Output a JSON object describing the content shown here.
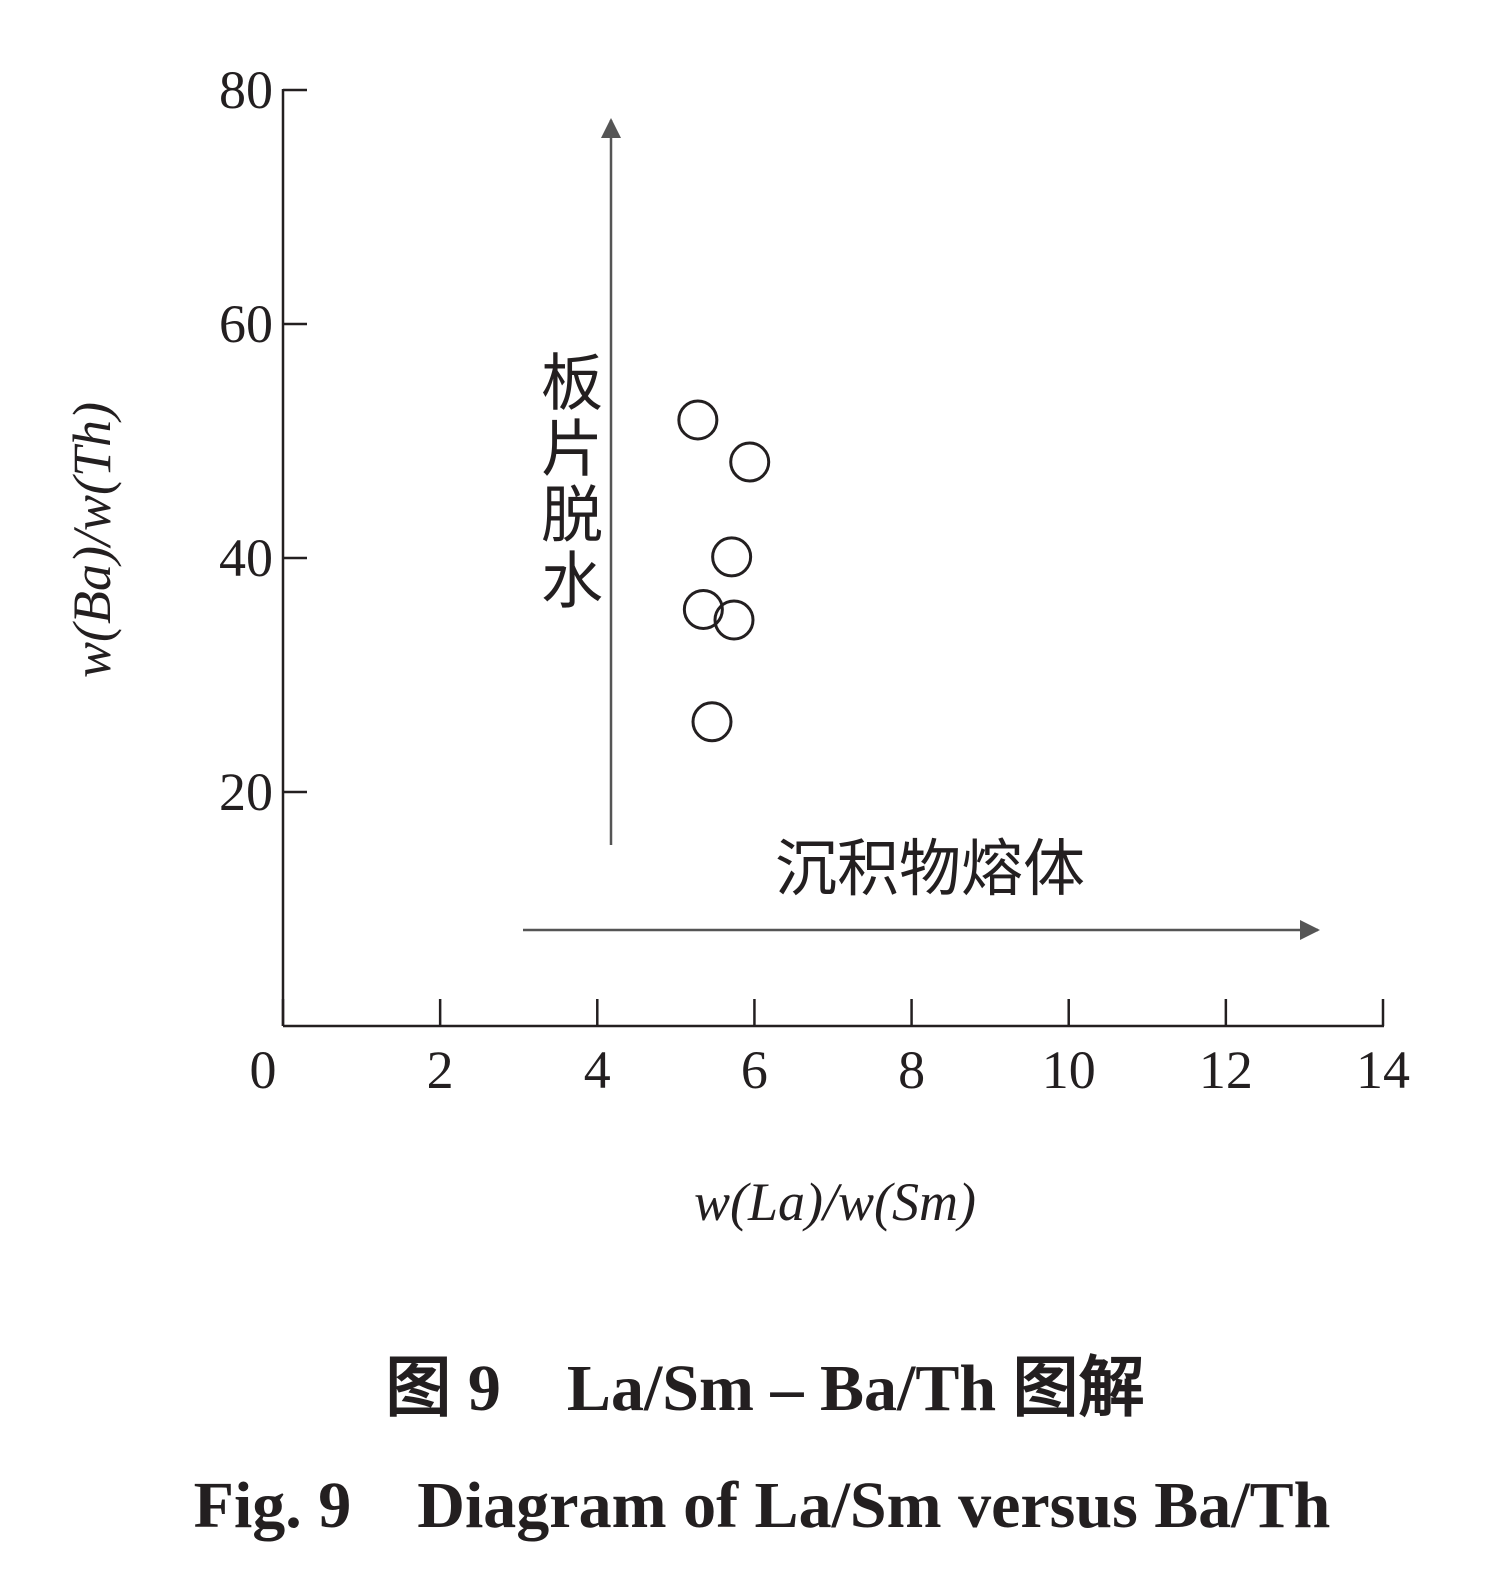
{
  "chart_data": {
    "type": "scatter",
    "title": "图 9　La/Sm – Ba/Th 图解",
    "subtitle": "Fig. 9　Diagram of La/Sm versus Ba/Th",
    "x_label": "w(La)/w(Sm)",
    "y_label": "w(Ba)/w(Th)",
    "annotations": [
      "板片脱水",
      "沉积物熔体"
    ],
    "series": [
      {
        "color": "#231f20",
        "x": [
          5.28,
          5.94,
          5.71,
          5.35,
          5.74,
          5.46
        ],
        "values": [
          51.8,
          48.2,
          40.1,
          35.6,
          34.7,
          26.0
        ]
      }
    ],
    "xlim": [
      0,
      14
    ],
    "xticks": [
      0,
      2,
      4,
      6,
      8,
      10,
      12,
      14
    ],
    "ylim": [
      0,
      80
    ],
    "yticks": [
      20,
      40,
      60,
      80
    ],
    "grid": false
  }
}
